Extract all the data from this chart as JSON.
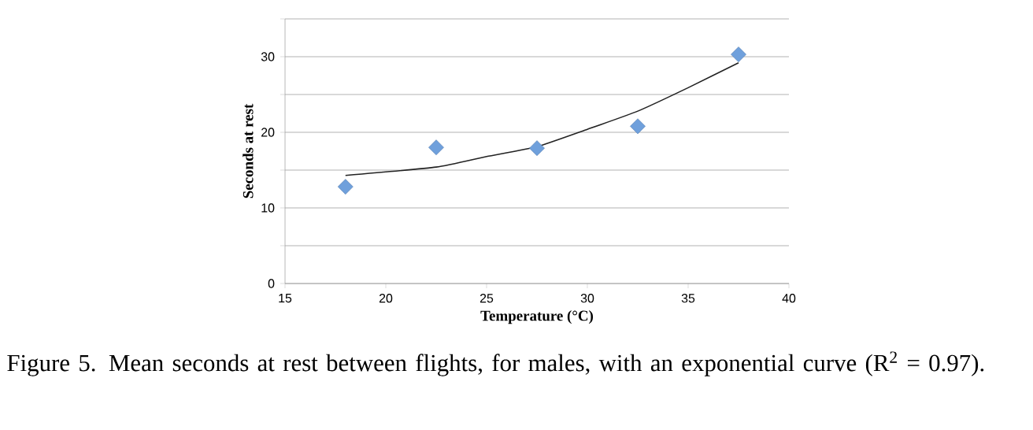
{
  "chart_data": {
    "type": "scatter",
    "xlabel": "Temperature (°C)",
    "ylabel": "Seconds at rest",
    "annotations": [
      "Figure 5. Mean seconds at rest between flights, for males, with an exponential curve (R$^{2}$ = 0.97)."
    ],
    "xlim": [
      15,
      40
    ],
    "ylim": [
      0,
      35
    ],
    "xticks": [
      15,
      20,
      25,
      30,
      35,
      40
    ],
    "yticks": [
      0,
      {
        "value": 5,
        "label": null
      },
      10,
      {
        "value": 15,
        "label": null
      },
      20,
      {
        "value": 25,
        "label": null
      },
      30,
      {
        "value": 35,
        "label": null
      }
    ],
    "grid": "y",
    "legend": false,
    "series": [
      {
        "type": "line",
        "color": "#222222",
        "marker": "none",
        "line_style": "solid",
        "x": [
          18,
          22.5,
          25,
          27.5,
          30,
          32.5,
          35,
          37.5
        ],
        "values": [
          14.3,
          15.4,
          16.8,
          18.1,
          20.4,
          22.8,
          25.9,
          29.2
        ]
      },
      {
        "color": "#6fa0dc",
        "marker": "diamond",
        "x": [
          18,
          22.5,
          27.5,
          32.5,
          37.5
        ],
        "values": [
          12.8,
          18.0,
          17.9,
          20.8,
          30.3
        ]
      }
    ]
  }
}
